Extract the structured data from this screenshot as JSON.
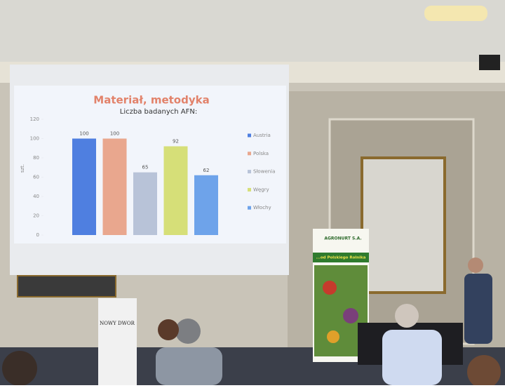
{
  "chart_data": {
    "type": "bar",
    "title": "Materiał, metodyka",
    "subtitle": "Liczba badanych AFN:",
    "y_label": "szt.",
    "categories": [
      "Austria",
      "Polska",
      "Słowenia",
      "Węgry",
      "Włochy"
    ],
    "values": [
      100,
      100,
      65,
      92,
      62
    ],
    "colors": [
      "#4f7fe0",
      "#e9a78e",
      "#b8c3d8",
      "#d6df78",
      "#6ea3ea"
    ],
    "ylim": [
      0,
      120
    ],
    "yticks": [
      0,
      20,
      40,
      60,
      80,
      100,
      120
    ],
    "legend": "right"
  },
  "scene": {
    "banner_brand": "AGRONURT S.A.",
    "banner_slogan": "...od Polskiego Rolnika",
    "sign": "NOWY DWOR"
  }
}
